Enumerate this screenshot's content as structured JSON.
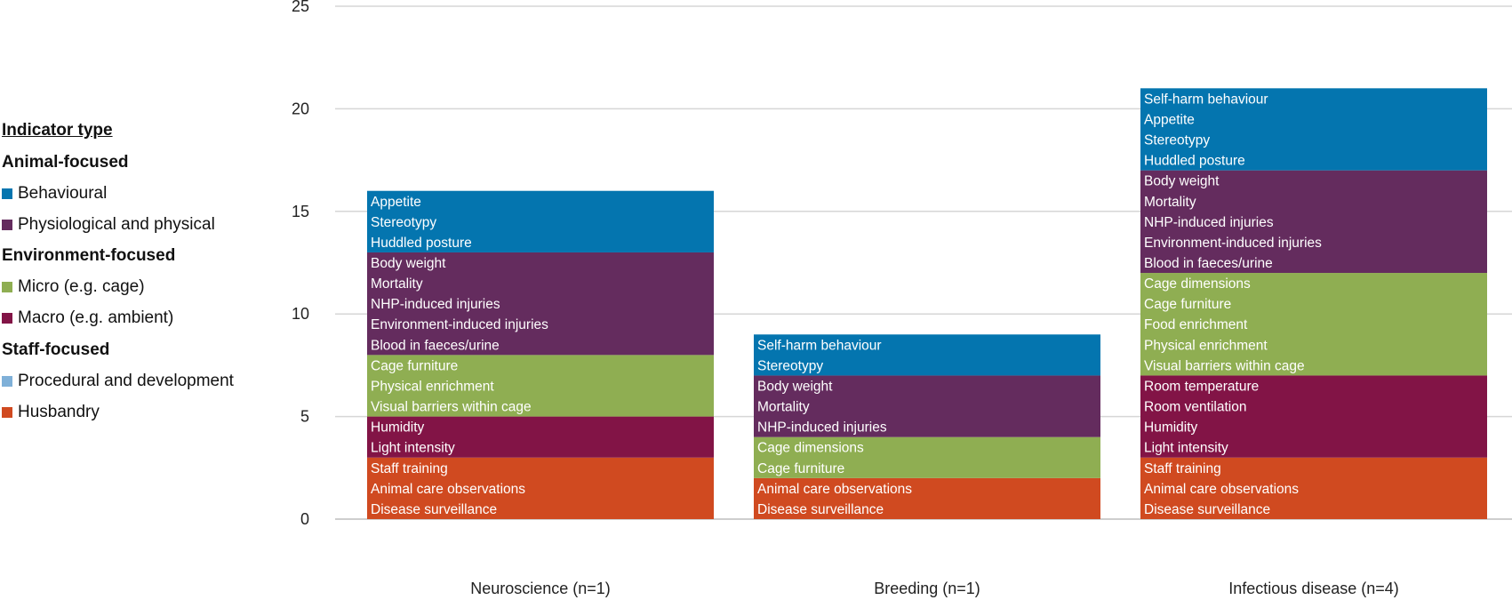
{
  "legend": {
    "title": "Indicator type",
    "groups": [
      {
        "label": "Animal-focused",
        "items": [
          {
            "label": "Behavioural",
            "color": "#0475AF"
          },
          {
            "label": "Physiological and physical",
            "color": "#642C5E"
          }
        ]
      },
      {
        "label": "Environment-focused",
        "items": [
          {
            "label": "Micro (e.g. cage)",
            "color": "#8FAE52"
          },
          {
            "label": "Macro (e.g. ambient)",
            "color": "#821446"
          }
        ]
      },
      {
        "label": "Staff-focused",
        "items": [
          {
            "label": "Procedural and development",
            "color": "#7FB0D8"
          },
          {
            "label": "Husbandry",
            "color": "#D04A20"
          }
        ]
      }
    ]
  },
  "chart_data": {
    "type": "bar",
    "stacked": true,
    "title": "",
    "xlabel": "",
    "ylabel": "",
    "ylim": [
      0,
      25
    ],
    "yticks": [
      0,
      5,
      10,
      15,
      20,
      25
    ],
    "grid": true,
    "legend_position": "left",
    "categories": [
      "Neuroscience (n=1)",
      "Breeding (n=1)",
      "Infectious disease (n=4)"
    ],
    "series": [
      {
        "name": "Husbandry",
        "color": "#D04A20",
        "values": [
          3,
          2,
          3
        ]
      },
      {
        "name": "Macro (e.g. ambient)",
        "color": "#821446",
        "values": [
          2,
          0,
          4
        ]
      },
      {
        "name": "Micro (e.g. cage)",
        "color": "#8FAE52",
        "values": [
          3,
          2,
          5
        ]
      },
      {
        "name": "Physiological and physical",
        "color": "#642C5E",
        "values": [
          5,
          3,
          5
        ]
      },
      {
        "name": "Behavioural",
        "color": "#0475AF",
        "values": [
          3,
          2,
          4
        ]
      }
    ],
    "bar_item_labels": [
      [
        "Appetite",
        "Stereotypy",
        "Huddled posture",
        "Body weight",
        "Mortality",
        "NHP-induced injuries",
        "Environment-induced injuries",
        "Blood in faeces/urine",
        "Cage furniture",
        "Physical enrichment",
        "Visual barriers within cage",
        "Humidity",
        "Light intensity",
        "Staff training",
        "Animal care observations",
        "Disease surveillance"
      ],
      [
        "Self-harm behaviour",
        "Stereotypy",
        "Body weight",
        "Mortality",
        "NHP-induced injuries",
        "Cage dimensions",
        "Cage furniture",
        "Animal care observations",
        "Disease surveillance"
      ],
      [
        "Self-harm behaviour",
        "Appetite",
        "Stereotypy",
        "Huddled posture",
        "Body weight",
        "Mortality",
        "NHP-induced injuries",
        "Environment-induced injuries",
        "Blood in faeces/urine",
        "Cage dimensions",
        "Cage furniture",
        "Food enrichment",
        "Physical enrichment",
        "Visual barriers within cage",
        "Room temperature",
        "Room ventilation",
        "Humidity",
        "Light intensity",
        "Staff training",
        "Animal care observations",
        "Disease surveillance"
      ]
    ]
  }
}
